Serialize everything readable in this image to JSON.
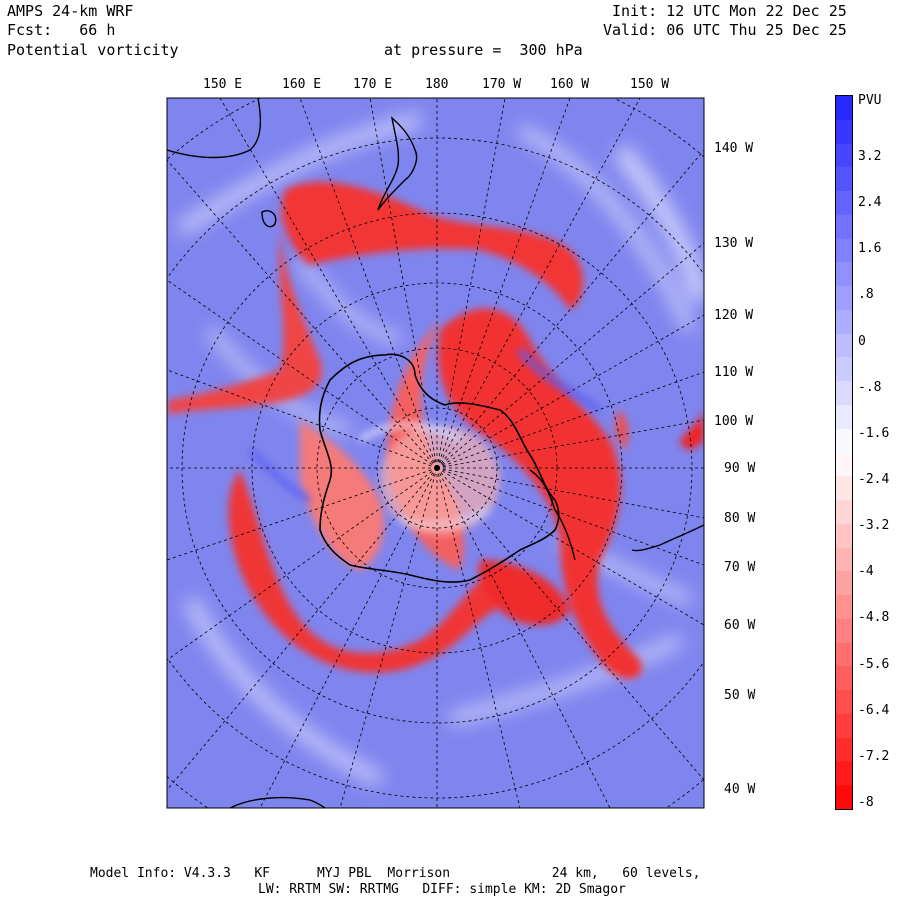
{
  "header": {
    "model": "AMPS 24-km WRF",
    "forecast": "Fcst:   66 h",
    "field": "Potential vorticity",
    "pressure": "at pressure =  300 hPa",
    "init": "Init: 12 UTC Mon 22 Dec 25",
    "valid": "Valid: 06 UTC Thu 25 Dec 25"
  },
  "map": {
    "top_longitude_labels": [
      "150 E",
      "160 E",
      "170 E",
      "180",
      "170 W",
      "160 W",
      "150 W"
    ],
    "side_longitude_labels": [
      "140 W",
      "130 W",
      "120 W",
      "110 W",
      "100 W",
      "90 W",
      "80 W",
      "70 W",
      "60 W",
      "50 W",
      "40 W"
    ],
    "colors": {
      "positive_pv": "#3a3aff",
      "negative_pv": "#ff1f1f",
      "background_field": "#7f85ee",
      "coastline": "#000000",
      "graticule": "#000000"
    }
  },
  "colorbar": {
    "unit": "PVU",
    "tick_labels": [
      "3.2",
      "2.4",
      "1.6",
      ".8",
      "0",
      "-.8",
      "-1.6",
      "-2.4",
      "-3.2",
      "-4",
      "-4.8",
      "-5.6",
      "-6.4",
      "-7.2",
      "-8"
    ],
    "range": [
      -8,
      4
    ]
  },
  "footer": {
    "line1": "Model Info: V4.3.3   KF      MYJ PBL  Morrison             24 km,   60 levels,",
    "line2": "LW: RRTM SW: RRTMG   DIFF: simple KM: 2D Smagor"
  }
}
